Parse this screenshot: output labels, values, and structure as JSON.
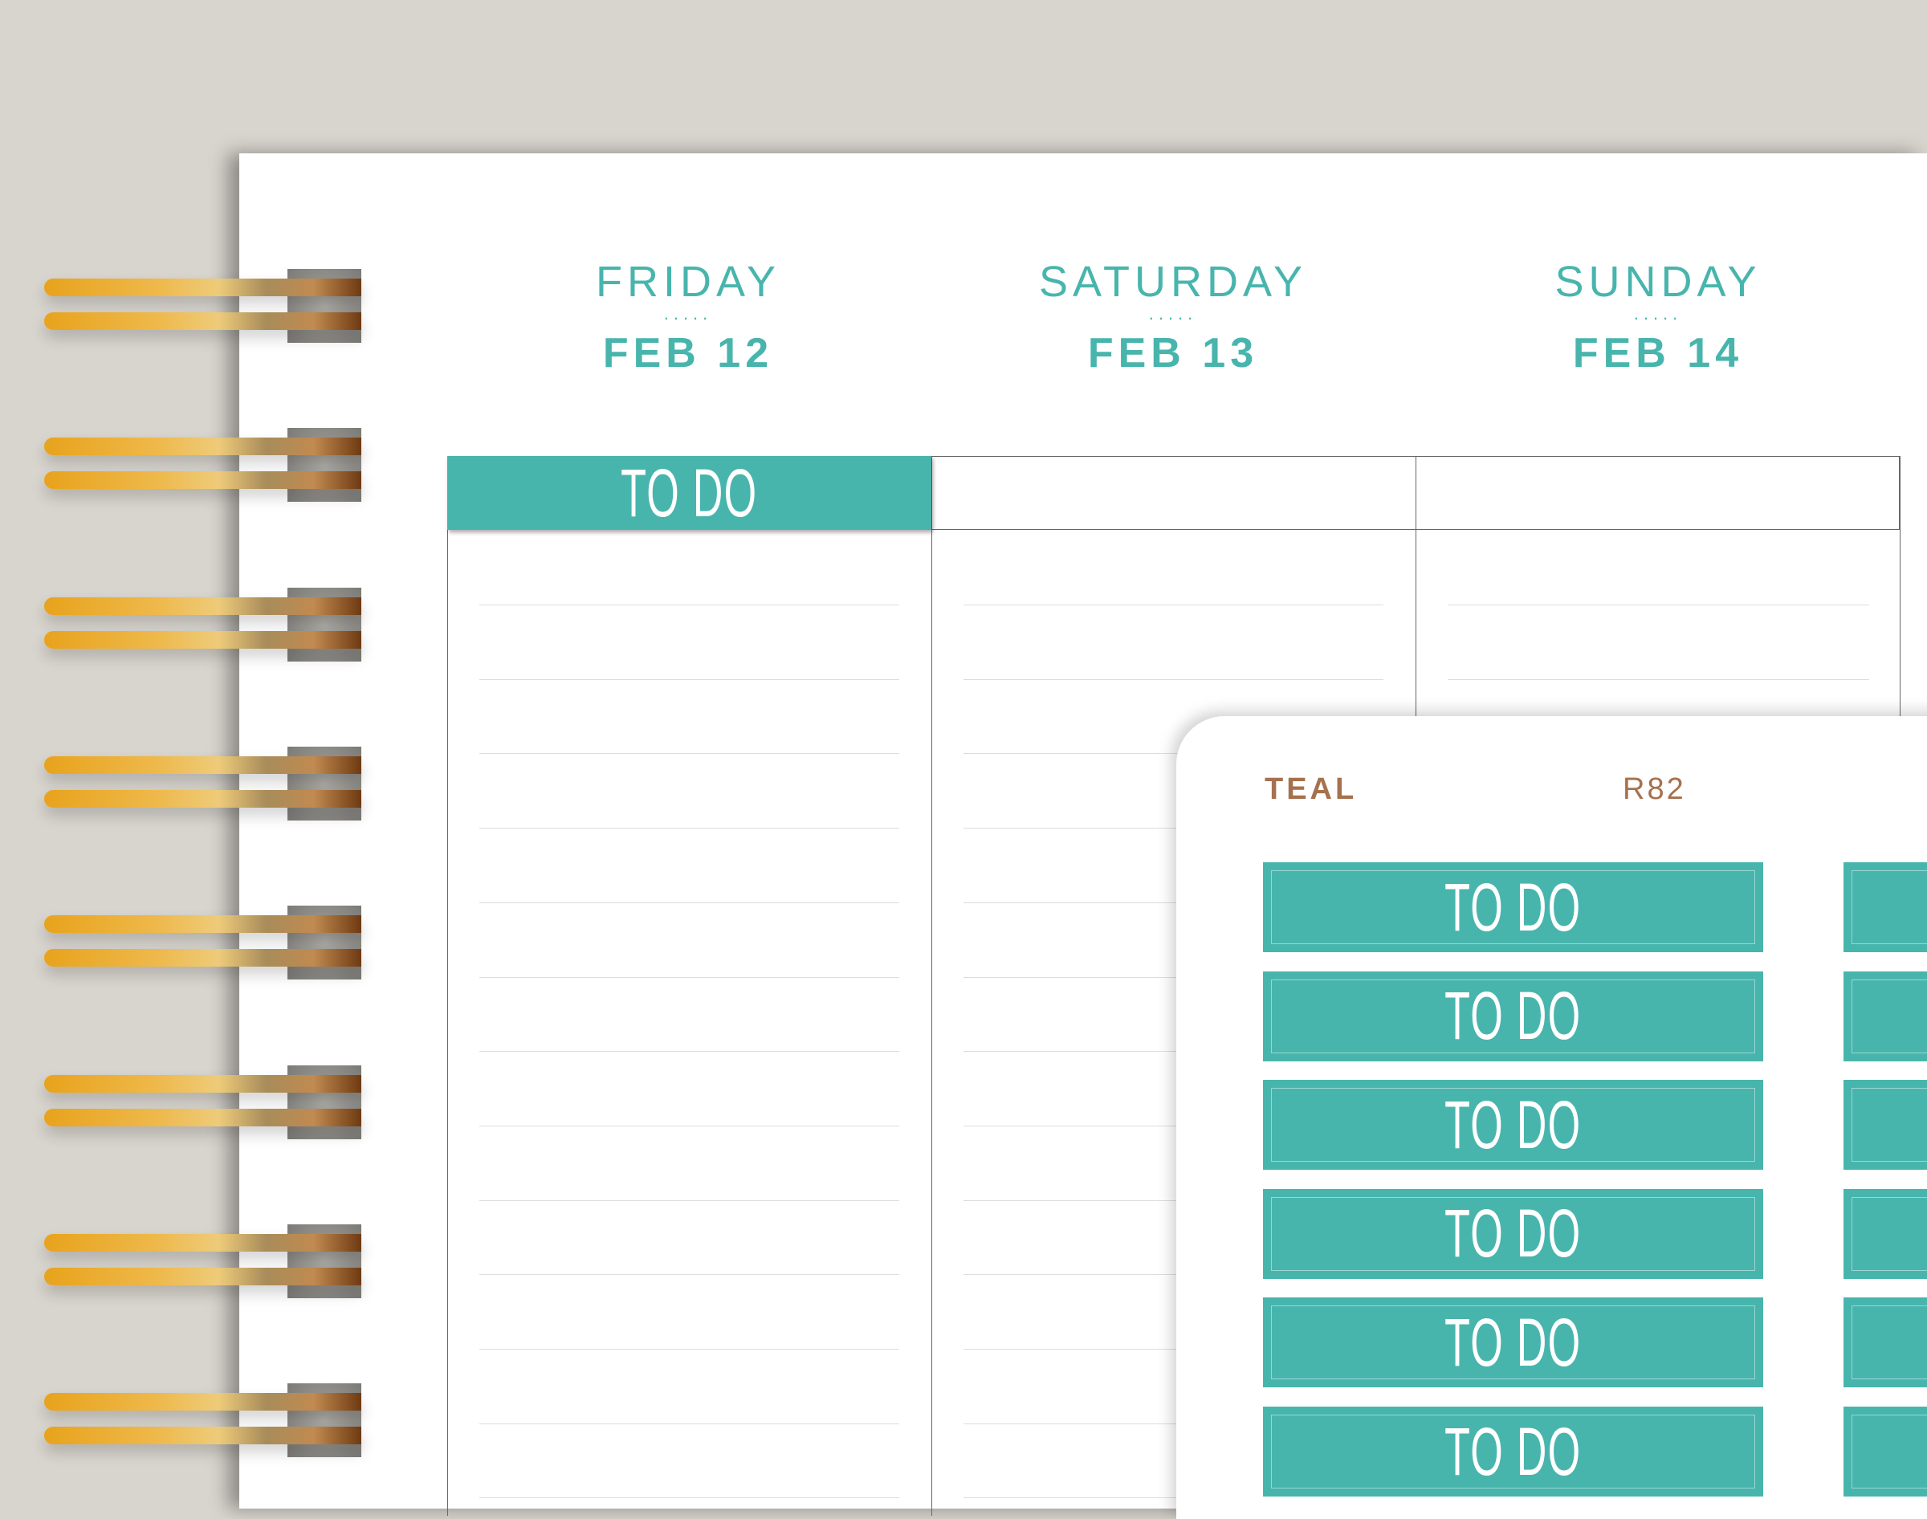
{
  "colors": {
    "accent": "#48b5ad",
    "label": "#a6714e",
    "background": "#d8d4ce"
  },
  "days": [
    {
      "name": "FRIDAY",
      "dots": ".....",
      "date": "FEB 12"
    },
    {
      "name": "SATURDAY",
      "dots": ".....",
      "date": "FEB 13"
    },
    {
      "name": "SUNDAY",
      "dots": ".....",
      "date": "FEB 14"
    }
  ],
  "header_sticker": "TO DO",
  "sheet": {
    "color_name": "TEAL",
    "code": "R82",
    "stickers": [
      "TO DO",
      "TO DO",
      "TO DO",
      "TO DO",
      "TO DO",
      "TO DO"
    ]
  }
}
